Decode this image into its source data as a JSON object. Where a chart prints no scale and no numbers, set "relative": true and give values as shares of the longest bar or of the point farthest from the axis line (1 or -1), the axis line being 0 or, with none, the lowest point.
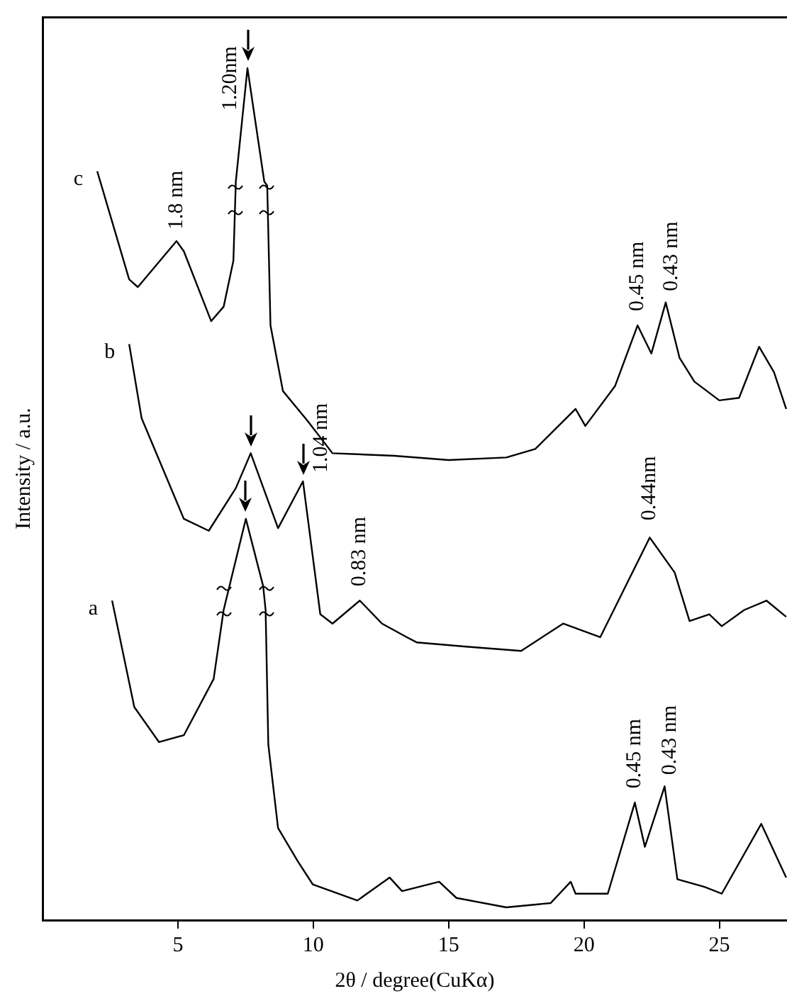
{
  "chart_data": {
    "type": "line",
    "xlabel": "2θ / degree(CuKα)",
    "ylabel": "Intensity / a.u.",
    "relative": true,
    "xlim": [
      0,
      27.5
    ],
    "xticks": [
      5,
      10,
      15,
      20,
      25
    ],
    "grid": false,
    "legend": false,
    "marker": "none",
    "line_style": "solid",
    "series": [
      {
        "name": "c",
        "color": "#000000",
        "x": [
          2.02,
          3.2,
          3.52,
          4.95,
          5.22,
          6.23,
          6.69,
          7.05,
          7.14,
          7.57,
          8.19,
          8.3,
          8.42,
          8.88,
          9.79,
          10.71,
          13,
          15,
          17.13,
          18.2,
          19.69,
          20.05,
          21.15,
          21.98,
          22.49,
          23.02,
          23.53,
          24.08,
          25.0,
          25.73,
          26.47,
          27.02,
          27.47
        ],
        "values": [
          0.879,
          0.752,
          0.743,
          0.797,
          0.785,
          0.703,
          0.72,
          0.774,
          0.867,
          1.0,
          0.867,
          0.862,
          0.698,
          0.621,
          0.586,
          0.548,
          0.545,
          0.54,
          0.543,
          0.553,
          0.6,
          0.58,
          0.627,
          0.698,
          0.665,
          0.725,
          0.66,
          0.632,
          0.61,
          0.613,
          0.673,
          0.643,
          0.6
        ]
      },
      {
        "name": "b",
        "color": "#000000",
        "x": [
          3.2,
          3.66,
          5.22,
          6.14,
          7.14,
          7.69,
          8.7,
          9.62,
          10.26,
          10.71,
          11.72,
          12.54,
          13.46,
          13.82,
          15.66,
          17.68,
          19.23,
          20.6,
          22.43,
          23.35,
          23.9,
          24.63,
          25.09,
          25.92,
          26.74,
          27.47
        ],
        "values": [
          0.676,
          0.589,
          0.471,
          0.457,
          0.507,
          0.548,
          0.46,
          0.515,
          0.359,
          0.348,
          0.375,
          0.348,
          0.332,
          0.326,
          0.321,
          0.316,
          0.348,
          0.332,
          0.449,
          0.408,
          0.351,
          0.359,
          0.345,
          0.364,
          0.375,
          0.356
        ]
      },
      {
        "name": "a",
        "color": "#000000",
        "x": [
          2.57,
          3.39,
          4.3,
          5.22,
          6.32,
          6.69,
          7.51,
          8.15,
          8.24,
          8.34,
          8.7,
          9.43,
          9.98,
          11.63,
          12.82,
          13.28,
          14.65,
          15.29,
          17.13,
          18.77,
          19.51,
          19.69,
          20.88,
          21.88,
          22.25,
          22.98,
          23.45,
          24.45,
          25.09,
          26.55,
          27.47
        ],
        "values": [
          0.375,
          0.25,
          0.209,
          0.217,
          0.283,
          0.364,
          0.471,
          0.392,
          0.364,
          0.206,
          0.108,
          0.069,
          0.042,
          0.023,
          0.05,
          0.034,
          0.045,
          0.026,
          0.015,
          0.02,
          0.045,
          0.031,
          0.031,
          0.138,
          0.086,
          0.157,
          0.048,
          0.039,
          0.031,
          0.113,
          0.05
        ]
      }
    ],
    "annotations": [
      {
        "text": "1.8 nm",
        "x": 4.95,
        "y": 0.797
      },
      {
        "text": "1.20nm",
        "x": 7.57,
        "y": 1.0
      },
      {
        "text": "1.04 nm",
        "x": 9.62,
        "y": 0.515
      },
      {
        "text": "0.83 nm",
        "x": 11.72,
        "y": 0.375
      },
      {
        "text": "0.45 nm",
        "x": 21.98,
        "y": 0.698
      },
      {
        "text": "0.43 nm",
        "x": 23.02,
        "y": 0.725
      },
      {
        "text": "0.44nm",
        "x": 22.43,
        "y": 0.449
      },
      {
        "text": "0.45 nm",
        "x": 21.88,
        "y": 0.138
      },
      {
        "text": "0.43 nm",
        "x": 22.98,
        "y": 0.157
      }
    ]
  }
}
